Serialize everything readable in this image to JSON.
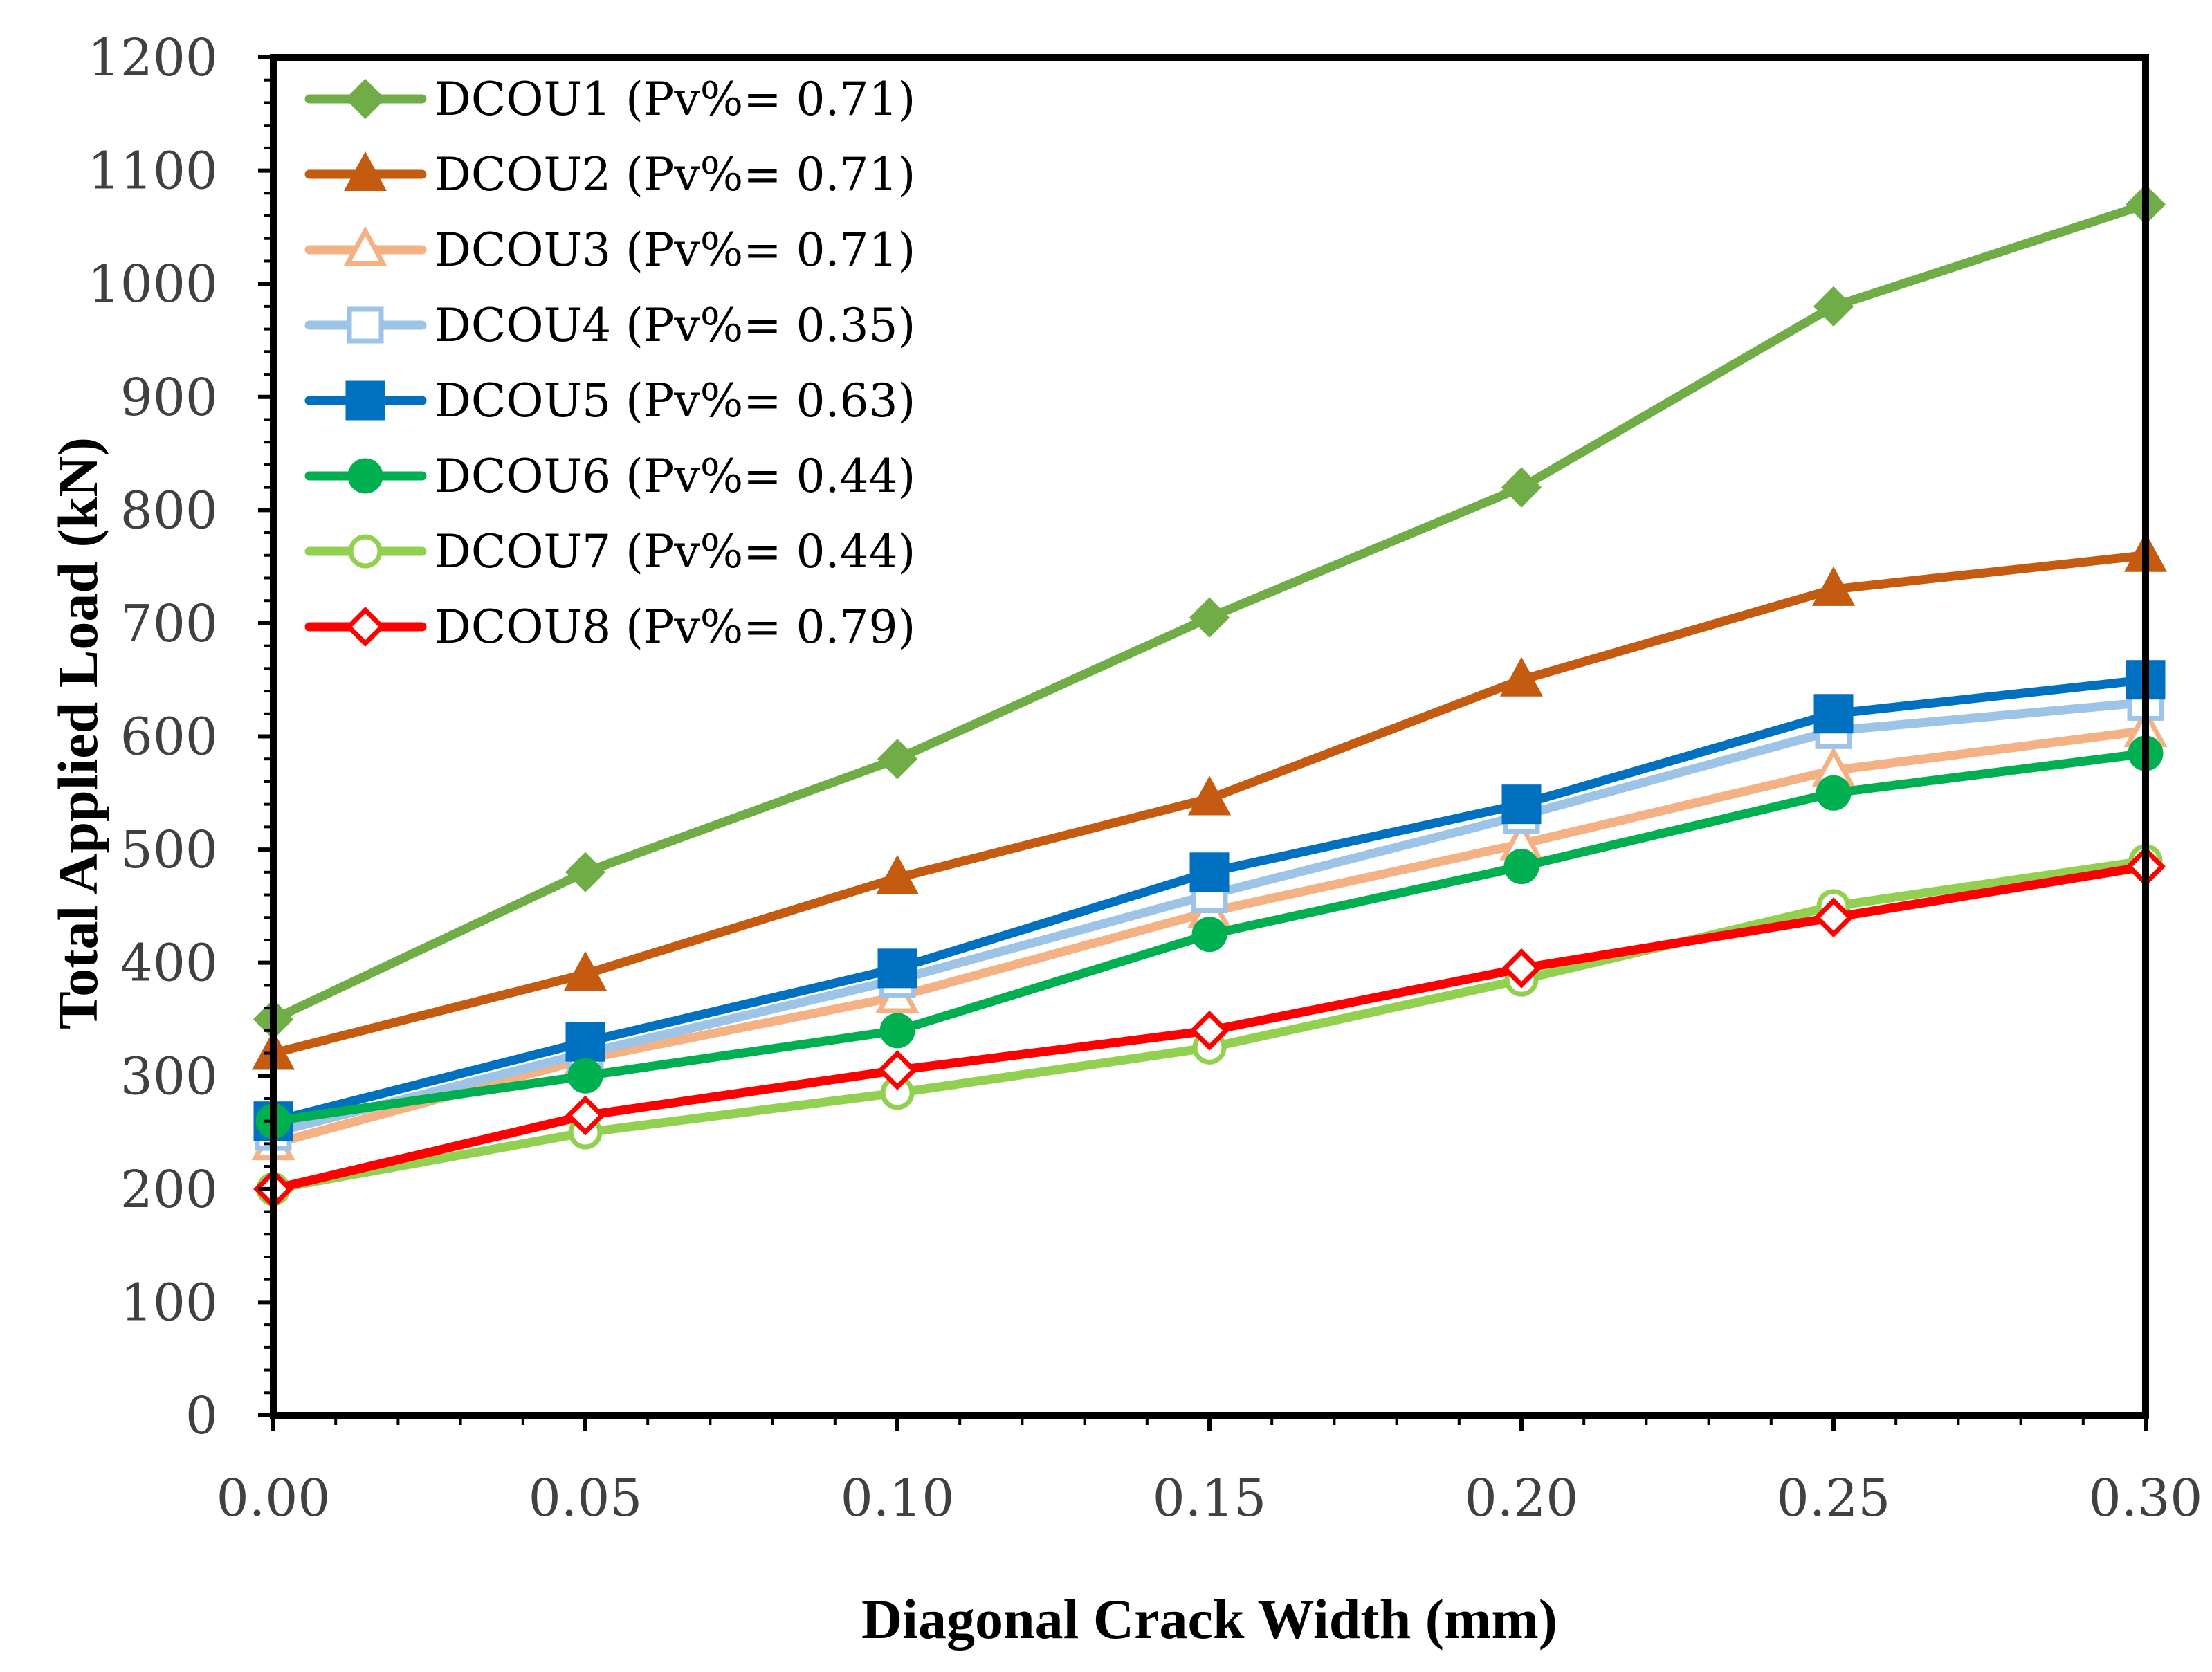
{
  "chart_data": {
    "type": "line",
    "title": "",
    "xlabel": "Diagonal Crack Width  (mm)",
    "ylabel": "Total Applied Load  (kN)",
    "xlim": [
      0,
      0.3
    ],
    "ylim": [
      0,
      1200
    ],
    "x": [
      0.0,
      0.05,
      0.1,
      0.15,
      0.2,
      0.25,
      0.3
    ],
    "x_tick_labels": [
      "0.00",
      "0.05",
      "0.10",
      "0.15",
      "0.20",
      "0.25",
      "0.30"
    ],
    "y_ticks": [
      0,
      100,
      200,
      300,
      400,
      500,
      600,
      700,
      800,
      900,
      1000,
      1100,
      1200
    ],
    "grid": false,
    "legend_position": "top-left",
    "series": [
      {
        "name": "DCOU1 (Pv%= 0.71)",
        "color": "#70AD47",
        "marker": "diamond-filled",
        "values": [
          350,
          480,
          580,
          705,
          820,
          980,
          1070
        ]
      },
      {
        "name": "DCOU2 (Pv%= 0.71)",
        "color": "#C55A11",
        "marker": "triangle-filled",
        "values": [
          320,
          390,
          475,
          545,
          650,
          730,
          760
        ]
      },
      {
        "name": "DCOU3 (Pv%= 0.71)",
        "color": "#F4B183",
        "marker": "triangle-open",
        "values": [
          240,
          315,
          370,
          445,
          505,
          570,
          605
        ]
      },
      {
        "name": "DCOU4 (Pv%= 0.35)",
        "color": "#9DC3E6",
        "marker": "square-open",
        "values": [
          250,
          320,
          385,
          460,
          530,
          605,
          630
        ]
      },
      {
        "name": "DCOU5 (Pv%= 0.63)",
        "color": "#0070C0",
        "marker": "square-filled",
        "values": [
          260,
          330,
          395,
          480,
          540,
          620,
          650
        ]
      },
      {
        "name": "DCOU6 (Pv%= 0.44)",
        "color": "#00B050",
        "marker": "circle-filled",
        "values": [
          260,
          300,
          340,
          425,
          485,
          550,
          585
        ]
      },
      {
        "name": "DCOU7 (Pv%= 0.44)",
        "color": "#92D050",
        "marker": "circle-open",
        "values": [
          200,
          250,
          285,
          325,
          385,
          450,
          490
        ]
      },
      {
        "name": "DCOU8 (Pv%= 0.79)",
        "color": "#FF0000",
        "marker": "diamond-open",
        "values": [
          200,
          265,
          305,
          340,
          395,
          440,
          485
        ]
      }
    ]
  }
}
